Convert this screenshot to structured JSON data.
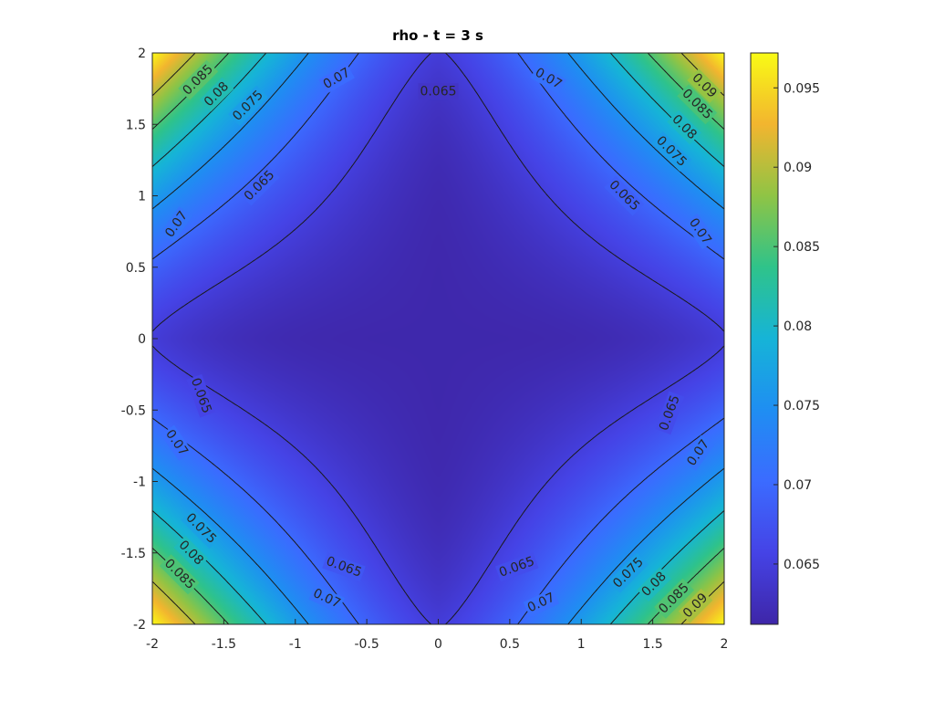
{
  "chart_data": {
    "type": "heatmap",
    "title": "rho - t = 3 s",
    "xlabel": "",
    "ylabel": "",
    "xlim": [
      -2,
      2
    ],
    "ylim": [
      -2,
      2
    ],
    "x_ticks": [
      "-2",
      "-1.5",
      "-1",
      "-0.5",
      "0",
      "0.5",
      "1",
      "1.5",
      "2"
    ],
    "y_ticks": [
      "2",
      "1.5",
      "1",
      "0.5",
      "0",
      "-0.5",
      "-1",
      "-1.5",
      "-2"
    ],
    "colormap": "parula",
    "colorbar": {
      "range": [
        0.0612,
        0.0972
      ],
      "ticks": [
        "0.095",
        "0.09",
        "0.085",
        "0.08",
        "0.075",
        "0.07",
        "0.065"
      ]
    },
    "field": {
      "center_value": 0.0615,
      "corner_value": 0.0972
    },
    "contour_levels": [
      0.065,
      0.07,
      0.075,
      0.08,
      0.085,
      0.09
    ],
    "contour_labels": [
      {
        "text": "0.065",
        "x": 0.0,
        "y": 1.73,
        "angle": 0
      },
      {
        "text": "0.065",
        "x": -1.25,
        "y": 1.07,
        "angle": -45
      },
      {
        "text": "0.065",
        "x": 1.3,
        "y": 1.0,
        "angle": 45
      },
      {
        "text": "0.065",
        "x": -1.66,
        "y": -0.4,
        "angle": 70
      },
      {
        "text": "0.065",
        "x": 1.62,
        "y": -0.52,
        "angle": -70
      },
      {
        "text": "0.065",
        "x": -0.66,
        "y": -1.6,
        "angle": 20
      },
      {
        "text": "0.065",
        "x": 0.55,
        "y": -1.6,
        "angle": -20
      },
      {
        "text": "0.07",
        "x": -0.71,
        "y": 1.82,
        "angle": -30
      },
      {
        "text": "0.07",
        "x": 0.77,
        "y": 1.82,
        "angle": 30
      },
      {
        "text": "0.07",
        "x": -1.83,
        "y": 0.8,
        "angle": -55
      },
      {
        "text": "0.07",
        "x": 1.83,
        "y": 0.75,
        "angle": 55
      },
      {
        "text": "0.07",
        "x": -1.83,
        "y": -0.73,
        "angle": 55
      },
      {
        "text": "0.07",
        "x": 1.82,
        "y": -0.8,
        "angle": -55
      },
      {
        "text": "0.07",
        "x": -0.78,
        "y": -1.82,
        "angle": 25
      },
      {
        "text": "0.07",
        "x": 0.72,
        "y": -1.85,
        "angle": -25
      },
      {
        "text": "0.075",
        "x": -1.33,
        "y": 1.63,
        "angle": -45
      },
      {
        "text": "0.075",
        "x": 1.63,
        "y": 1.31,
        "angle": 45
      },
      {
        "text": "0.075",
        "x": -1.66,
        "y": -1.33,
        "angle": 45
      },
      {
        "text": "0.075",
        "x": 1.33,
        "y": -1.64,
        "angle": -45
      },
      {
        "text": "0.08",
        "x": -1.55,
        "y": 1.71,
        "angle": -45
      },
      {
        "text": "0.08",
        "x": 1.72,
        "y": 1.48,
        "angle": 45
      },
      {
        "text": "0.08",
        "x": -1.73,
        "y": -1.5,
        "angle": 45
      },
      {
        "text": "0.08",
        "x": 1.51,
        "y": -1.72,
        "angle": -45
      },
      {
        "text": "0.085",
        "x": -1.68,
        "y": 1.81,
        "angle": -45
      },
      {
        "text": "0.085",
        "x": 1.81,
        "y": 1.64,
        "angle": 45
      },
      {
        "text": "0.085",
        "x": -1.81,
        "y": -1.65,
        "angle": 45
      },
      {
        "text": "0.085",
        "x": 1.65,
        "y": -1.82,
        "angle": -45
      },
      {
        "text": "0.09",
        "x": 1.86,
        "y": 1.77,
        "angle": 45
      },
      {
        "text": "0.09",
        "x": 1.8,
        "y": -1.87,
        "angle": -45
      }
    ]
  }
}
